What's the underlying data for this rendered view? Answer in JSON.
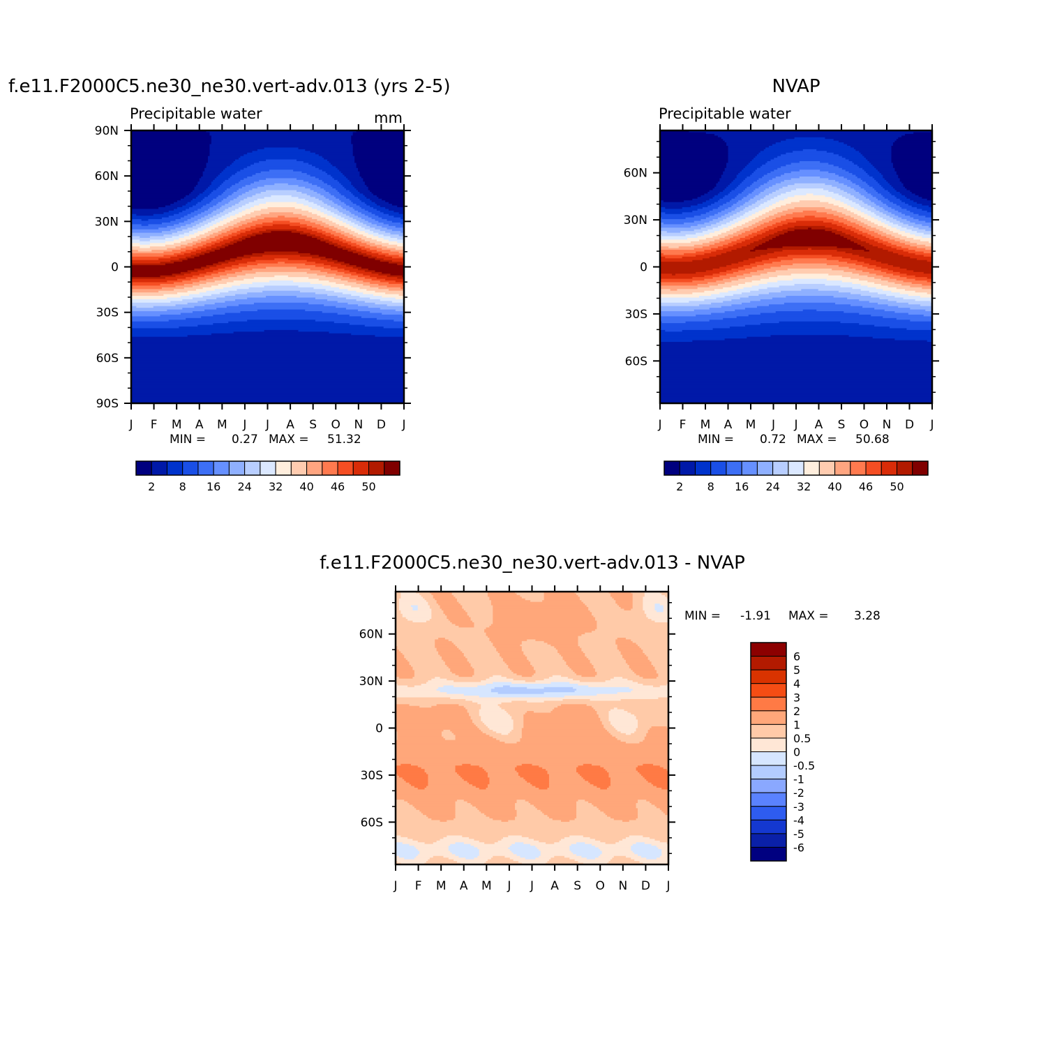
{
  "chart_data": [
    {
      "type": "heatmap",
      "title": "f.e11.F2000C5.ne30_ne30.vert-adv.013 (yrs 2-5)",
      "subtitle": "Precipitable water",
      "units": "mm",
      "x_ticks": [
        "J",
        "F",
        "M",
        "A",
        "M",
        "J",
        "J",
        "A",
        "S",
        "O",
        "N",
        "D",
        "J"
      ],
      "y_ticks": [
        "90N",
        "60N",
        "30N",
        "0",
        "30S",
        "60S",
        "90S"
      ],
      "ylim": [
        -90,
        90
      ],
      "min_label": "MIN =",
      "min_value": "0.27",
      "max_label": "MAX =",
      "max_value": "51.32",
      "colorbar_labels": [
        "2",
        "8",
        "16",
        "24",
        "32",
        "40",
        "46",
        "50"
      ],
      "description_fields": {
        "min": 0.27,
        "max": 51.32
      }
    },
    {
      "type": "heatmap",
      "title": "NVAP",
      "subtitle": "Precipitable water",
      "x_ticks": [
        "J",
        "F",
        "M",
        "A",
        "M",
        "J",
        "J",
        "A",
        "S",
        "O",
        "N",
        "D",
        "J"
      ],
      "y_ticks": [
        "60N",
        "30N",
        "0",
        "30S",
        "60S"
      ],
      "ylim": [
        -87,
        87
      ],
      "min_label": "MIN =",
      "min_value": "0.72",
      "max_label": "MAX =",
      "max_value": "50.68",
      "colorbar_labels": [
        "2",
        "8",
        "16",
        "24",
        "32",
        "40",
        "46",
        "50"
      ],
      "description_fields": {
        "min": 0.72,
        "max": 50.68
      }
    },
    {
      "type": "heatmap",
      "title": "f.e11.F2000C5.ne30_ne30.vert-adv.013 - NVAP",
      "x_ticks": [
        "J",
        "F",
        "M",
        "A",
        "M",
        "J",
        "J",
        "A",
        "S",
        "O",
        "N",
        "D",
        "J"
      ],
      "y_ticks": [
        "60N",
        "30N",
        "0",
        "30S",
        "60S"
      ],
      "ylim": [
        -87,
        87
      ],
      "min_label": "MIN =",
      "min_value": "-1.91",
      "max_label": "MAX =",
      "max_value": "3.28",
      "colorbar_labels": [
        "6",
        "5",
        "4",
        "3",
        "2",
        "1",
        "0.5",
        "0",
        "-0.5",
        "-1",
        "-2",
        "-3",
        "-4",
        "-5",
        "-6"
      ],
      "description_fields": {
        "min": -1.91,
        "max": 3.28
      }
    }
  ],
  "palette": {
    "pw": [
      "#00007f",
      "#0019a8",
      "#0033cc",
      "#1a4fe6",
      "#3d6ff5",
      "#6690ff",
      "#8fb0ff",
      "#b8ceff",
      "#dbe8ff",
      "#ffeedd",
      "#ffccb0",
      "#ffa580",
      "#ff7a4f",
      "#f54e23",
      "#d92c08",
      "#b21a00",
      "#800000"
    ],
    "diff": [
      "#8c0000",
      "#b31a00",
      "#d93300",
      "#f54d14",
      "#ff7a45",
      "#ffa77a",
      "#ffcaa8",
      "#ffe7d6",
      "#d6e6ff",
      "#b3ccff",
      "#8aa8ff",
      "#5a82ff",
      "#2e5cf0",
      "#1438d0",
      "#0a20a8",
      "#000080"
    ]
  }
}
